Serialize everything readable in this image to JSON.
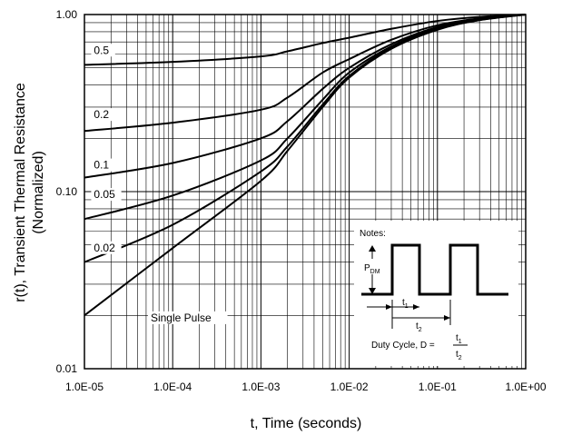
{
  "chart_data": {
    "type": "line",
    "title": "",
    "xlabel": "t, Time (seconds)",
    "ylabel": "r(t), Transient Thermal Resistance",
    "ylabel_sub": "(Normalized)",
    "x_scale": "log",
    "y_scale": "log",
    "xlim": [
      1e-05,
      1.0
    ],
    "ylim": [
      0.01,
      1.0
    ],
    "grid": true,
    "x_ticks": [
      {
        "value": 1e-05,
        "label": "1.0E-05"
      },
      {
        "value": 0.0001,
        "label": "1.0E-04"
      },
      {
        "value": 0.001,
        "label": "1.0E-03"
      },
      {
        "value": 0.01,
        "label": "1.0E-02"
      },
      {
        "value": 0.1,
        "label": "1.0E-01"
      },
      {
        "value": 1.0,
        "label": "1.0E+00"
      }
    ],
    "y_ticks": [
      {
        "value": 1.0,
        "label": "1.00"
      },
      {
        "value": 0.1,
        "label": "0.10"
      },
      {
        "value": 0.01,
        "label": "0.01"
      }
    ],
    "series": [
      {
        "name": "0.5",
        "label": "0.5",
        "label_at": [
          1.25e-05,
          0.6
        ],
        "x": [
          1e-05,
          0.0001,
          0.001,
          0.002,
          0.005,
          0.01,
          0.03,
          0.1,
          0.3,
          1.0
        ],
        "y": [
          0.52,
          0.54,
          0.58,
          0.62,
          0.69,
          0.74,
          0.83,
          0.92,
          0.97,
          1.0
        ]
      },
      {
        "name": "0.2",
        "label": "0.2",
        "label_at": [
          1.25e-05,
          0.26
        ],
        "x": [
          1e-05,
          0.0001,
          0.001,
          0.002,
          0.005,
          0.01,
          0.03,
          0.1,
          0.3,
          1.0
        ],
        "y": [
          0.22,
          0.245,
          0.29,
          0.34,
          0.47,
          0.56,
          0.72,
          0.87,
          0.95,
          1.0
        ]
      },
      {
        "name": "0.1",
        "label": "0.1",
        "label_at": [
          1.25e-05,
          0.135
        ],
        "x": [
          1e-05,
          0.0001,
          0.001,
          0.002,
          0.005,
          0.01,
          0.03,
          0.1,
          0.3,
          1.0
        ],
        "y": [
          0.12,
          0.145,
          0.2,
          0.25,
          0.38,
          0.5,
          0.68,
          0.85,
          0.94,
          1.0
        ]
      },
      {
        "name": "0.05",
        "label": "0.05",
        "label_at": [
          1.25e-05,
          0.092
        ],
        "x": [
          1e-05,
          0.0001,
          0.001,
          0.002,
          0.005,
          0.01,
          0.03,
          0.1,
          0.3,
          1.0
        ],
        "y": [
          0.07,
          0.095,
          0.15,
          0.2,
          0.33,
          0.47,
          0.66,
          0.84,
          0.94,
          1.0
        ]
      },
      {
        "name": "0.02",
        "label": "0.02",
        "label_at": [
          1.25e-05,
          0.046
        ],
        "x": [
          1e-05,
          0.0001,
          0.001,
          0.002,
          0.005,
          0.01,
          0.03,
          0.1,
          0.3,
          1.0
        ],
        "y": [
          0.04,
          0.065,
          0.13,
          0.18,
          0.31,
          0.45,
          0.65,
          0.83,
          0.93,
          1.0
        ]
      },
      {
        "name": "Single Pulse",
        "label": "Single Pulse",
        "label_at": [
          5.5e-05,
          0.0185
        ],
        "x": [
          1e-05,
          0.0001,
          0.001,
          0.002,
          0.005,
          0.01,
          0.03,
          0.1,
          0.3,
          1.0
        ],
        "y": [
          0.02,
          0.048,
          0.115,
          0.17,
          0.3,
          0.44,
          0.64,
          0.82,
          0.93,
          1.0
        ]
      }
    ],
    "notes": {
      "title": "Notes:",
      "pdm": "P",
      "pdm_sub": "DM",
      "t1": "t",
      "t1_sub": "1",
      "t2": "t",
      "t2_sub": "2",
      "duty": "Duty Cycle, D =",
      "frac_num": "t",
      "frac_num_sub": "1",
      "frac_den": "t",
      "frac_den_sub": "2"
    }
  }
}
